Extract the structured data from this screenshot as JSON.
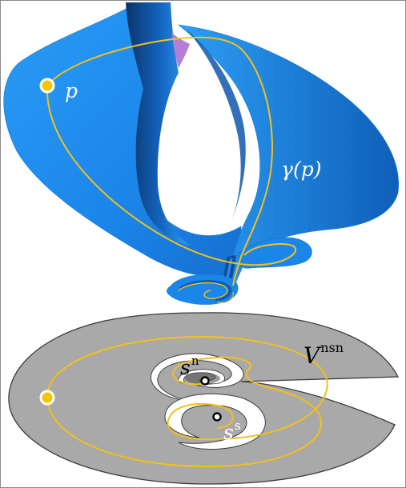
{
  "labels": {
    "p": "p",
    "gamma": "γ(p)",
    "s_n_base": "s",
    "s_n_sup": "n",
    "s_s_base": "s",
    "s_s_sup": "s",
    "V_base": "V",
    "V_sup": "nsn"
  },
  "colors": {
    "surface_blue": "#1e8ff0",
    "surface_dark": "#0a3a78",
    "violet_patch": "#b57fd6",
    "disk_gray": "#a9a9a9",
    "disk_outline": "#3c3c3c",
    "orbit_yellow": "#f2c01e",
    "marker_yellow": "#f7c500"
  }
}
